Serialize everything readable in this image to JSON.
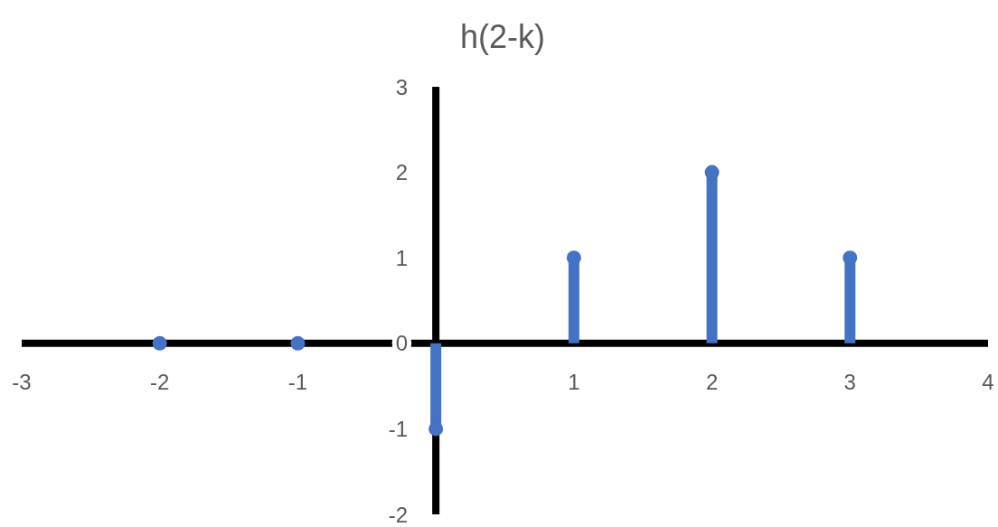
{
  "chart_data": {
    "type": "lollipop",
    "title": "h(2-k)",
    "x": [
      -2,
      -1,
      0,
      1,
      2,
      3
    ],
    "values": [
      0,
      0,
      -1,
      1,
      2,
      1
    ],
    "color": "#4472c4",
    "marker": "circle",
    "xlim": [
      -3,
      4
    ],
    "xticks": [
      -3,
      -2,
      -1,
      1,
      2,
      3,
      4
    ],
    "ylim": [
      -2,
      3
    ],
    "yticks": [
      -2,
      -1,
      0,
      1,
      2,
      3
    ]
  }
}
